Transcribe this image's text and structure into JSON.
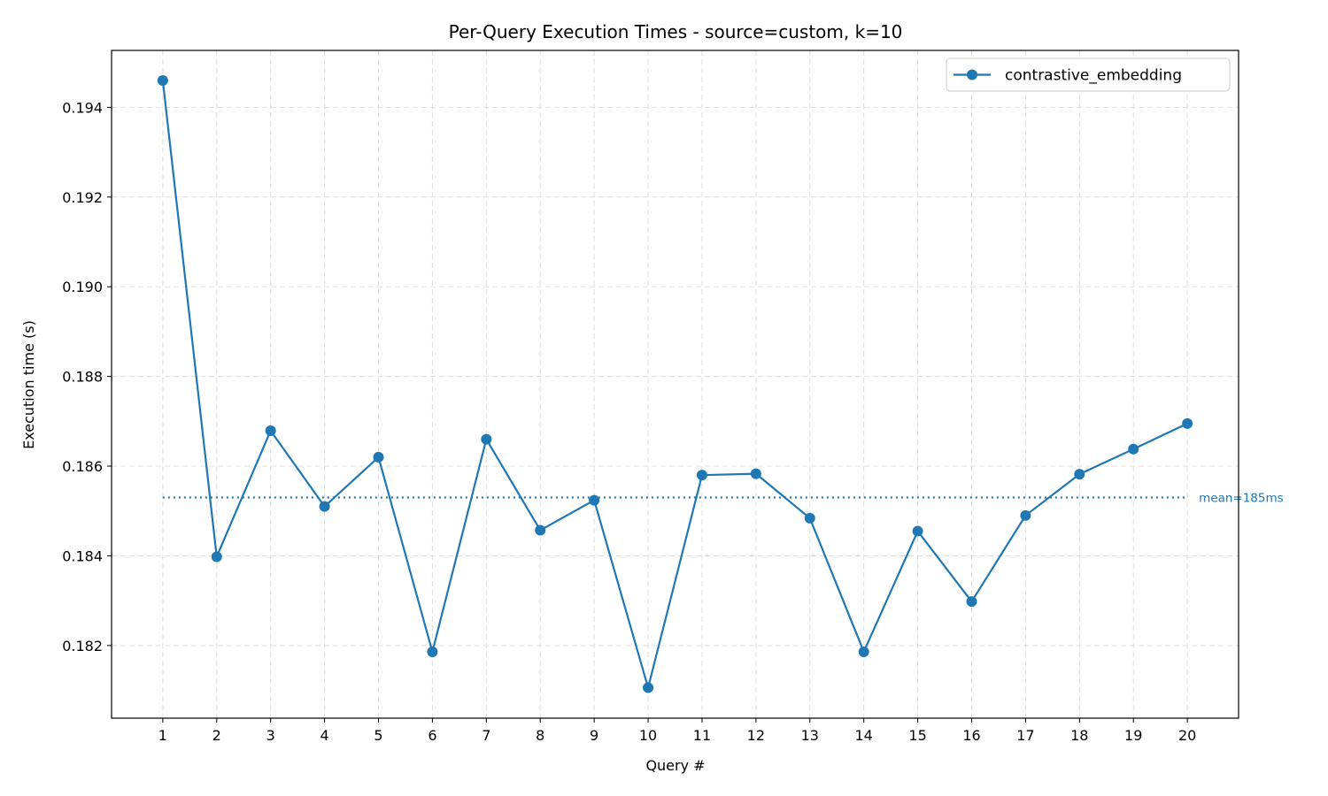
{
  "chart_data": {
    "type": "line",
    "title": "Per-Query Execution Times - source=custom, k=10",
    "xlabel": "Query #",
    "ylabel": "Execution time (s)",
    "x": [
      1,
      2,
      3,
      4,
      5,
      6,
      7,
      8,
      9,
      10,
      11,
      12,
      13,
      14,
      15,
      16,
      17,
      18,
      19,
      20
    ],
    "xlim": [
      0.05,
      20.95
    ],
    "ylim": [
      0.18038,
      0.19527
    ],
    "yticks": [
      "0.182",
      "0.184",
      "0.186",
      "0.188",
      "0.190",
      "0.192",
      "0.194"
    ],
    "grid": true,
    "legend_position": "top-right",
    "series": [
      {
        "name": "contrastive_embedding",
        "color": "#1f77b4",
        "values": [
          0.1946,
          0.18398,
          0.18679,
          0.1851,
          0.1862,
          0.18186,
          0.1866,
          0.18457,
          0.18524,
          0.18106,
          0.1858,
          0.18583,
          0.18484,
          0.18186,
          0.18455,
          0.18298,
          0.1849,
          0.18582,
          0.18638,
          0.18695
        ]
      }
    ],
    "mean": {
      "value": 0.1853,
      "label": "mean=185ms",
      "color": "#1f77b4",
      "style": "dotted"
    }
  }
}
